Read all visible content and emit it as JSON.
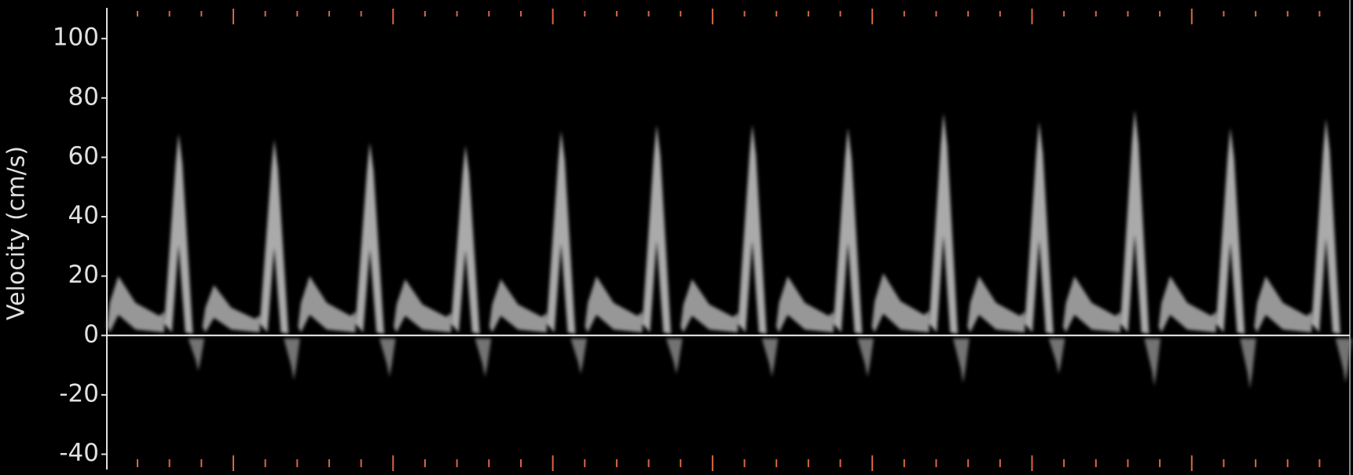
{
  "chart_data": {
    "type": "doppler",
    "y_label": "Velocity (cm/s)",
    "ylim": [
      -47,
      113
    ],
    "yticks": [
      100,
      80,
      60,
      40,
      20,
      0,
      -20,
      -40
    ],
    "categories": [
      null,
      null,
      null,
      null,
      null,
      null,
      null,
      null,
      null,
      null,
      null,
      null,
      null
    ],
    "series": [
      {
        "color": "#bdbdbd",
        "values": [
          20,
          17,
          20,
          19,
          19,
          20,
          19,
          20,
          21,
          20,
          20,
          20,
          20
        ]
      },
      {
        "color": "#c8c8c8",
        "values": [
          68,
          66,
          65,
          64,
          69,
          71,
          71,
          70,
          75,
          72,
          76,
          70,
          73
        ]
      },
      {
        "color": "#9a9a9a",
        "values": [
          -12,
          -15,
          -14,
          -14,
          -13,
          -13,
          -14,
          -14,
          -16,
          -13,
          -17,
          -18,
          -16
        ]
      }
    ],
    "grid": false
  }
}
